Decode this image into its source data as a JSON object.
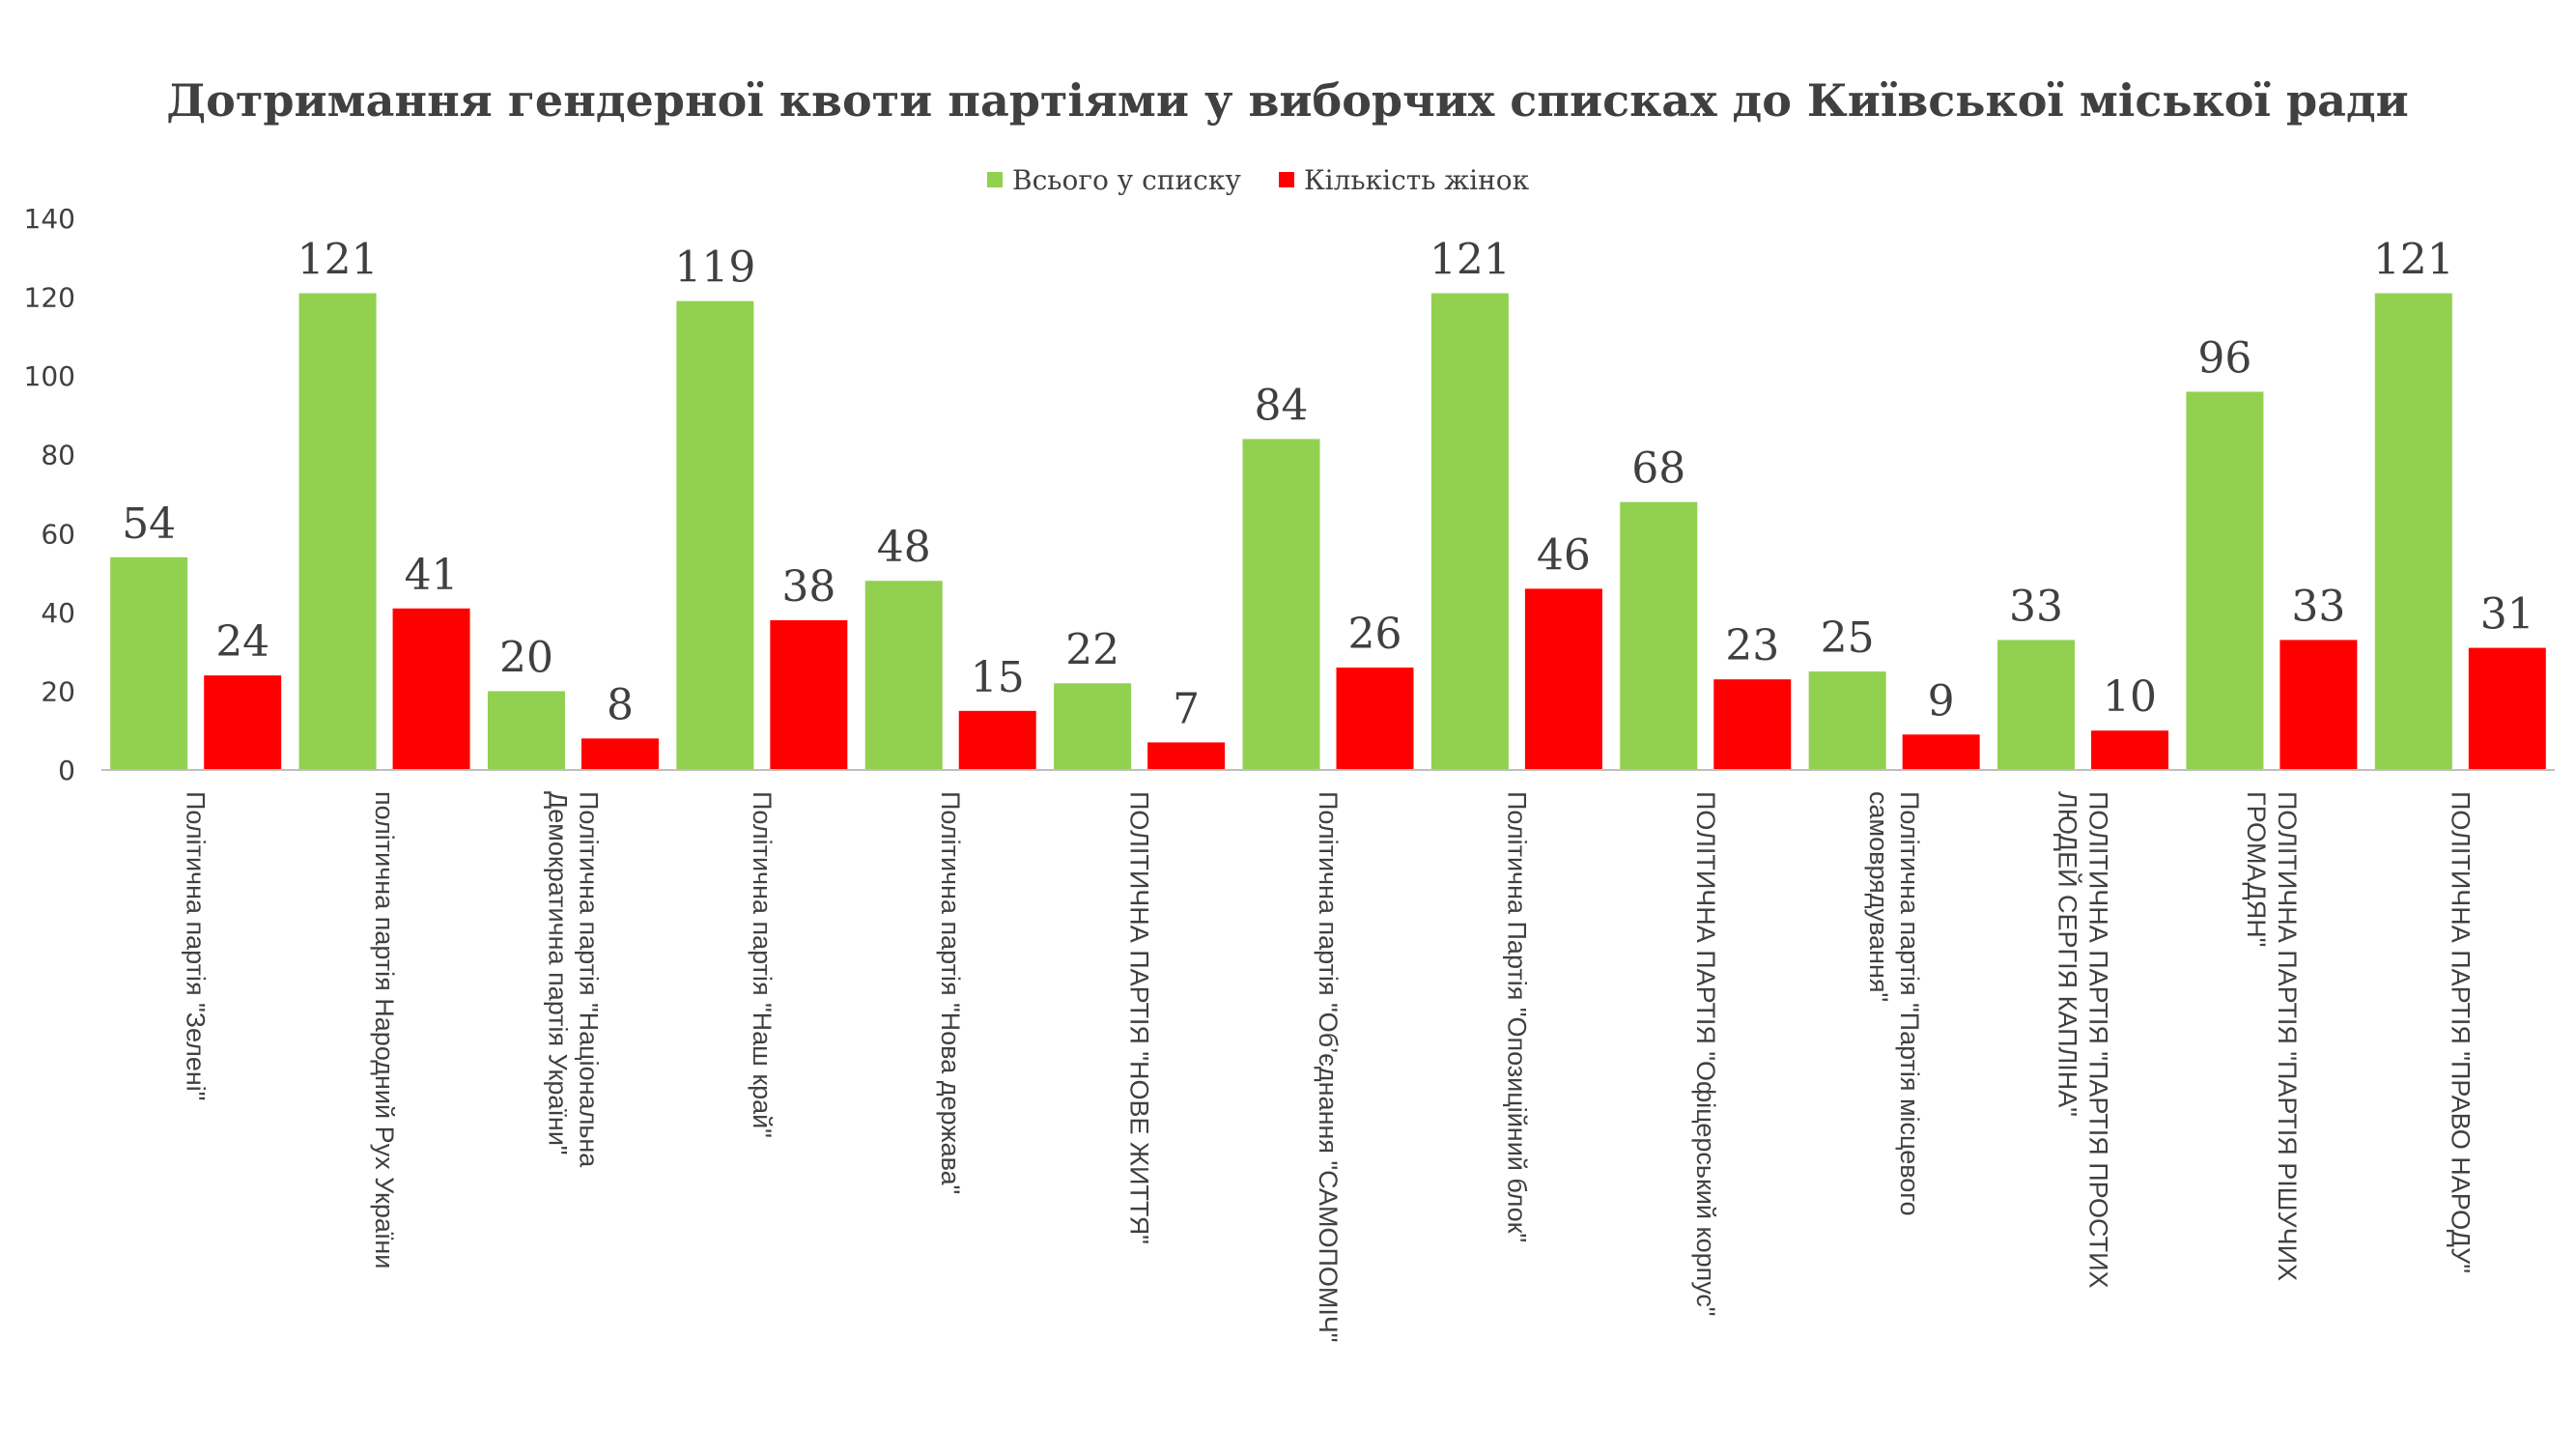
{
  "chart_data": {
    "type": "bar",
    "title": "Дотримання гендерної квоти партіями у виборчих списках до Київської міської ради",
    "xlabel": "",
    "ylabel": "",
    "ylim": [
      0,
      140
    ],
    "yticks": [
      0,
      20,
      40,
      60,
      80,
      100,
      120,
      140
    ],
    "grid": false,
    "legend_position": "top",
    "colors": {
      "total": "#92D050",
      "women": "#FF0000",
      "text": "#404040",
      "axis": "#BFBFBF"
    },
    "categories": [
      [
        "Політична партія \"Зелені\""
      ],
      [
        "політична партія Народний Рух України"
      ],
      [
        "Політична партія \"Національна",
        "Демократична партія України\""
      ],
      [
        "Політична партія \"Наш край\""
      ],
      [
        "Політична партія \"Нова держава\""
      ],
      [
        "ПОЛІТИЧНА ПАРТІЯ \"НОВЕ ЖИТТЯ\""
      ],
      [
        "Політична партія \"Об’єднання \"САМОПОМІЧ\""
      ],
      [
        "Політична Партія \"Опозиційний блок\""
      ],
      [
        "ПОЛІТИЧНА ПАРТІЯ \"Офіцерський корпус\""
      ],
      [
        "Політична партія \"Партія місцевого",
        "самоврядування\""
      ],
      [
        "ПОЛІТИЧНА ПАРТІЯ \"ПАРТІЯ ПРОСТИХ",
        "ЛЮДЕЙ СЕРГІЯ КАПЛІНА\""
      ],
      [
        "ПОЛІТИЧНА ПАРТІЯ \"ПАРТІЯ РІШУЧИХ",
        "ГРОМАДЯН\""
      ],
      [
        "ПОЛІТИЧНА ПАРТІЯ \"ПРАВО НАРОДУ\""
      ]
    ],
    "series": [
      {
        "name": "Всього у списку",
        "values": [
          54,
          121,
          20,
          119,
          48,
          22,
          84,
          121,
          68,
          25,
          33,
          96,
          121
        ]
      },
      {
        "name": "Кількість жінок",
        "values": [
          24,
          41,
          8,
          38,
          15,
          7,
          26,
          46,
          23,
          9,
          10,
          33,
          31
        ]
      }
    ]
  }
}
